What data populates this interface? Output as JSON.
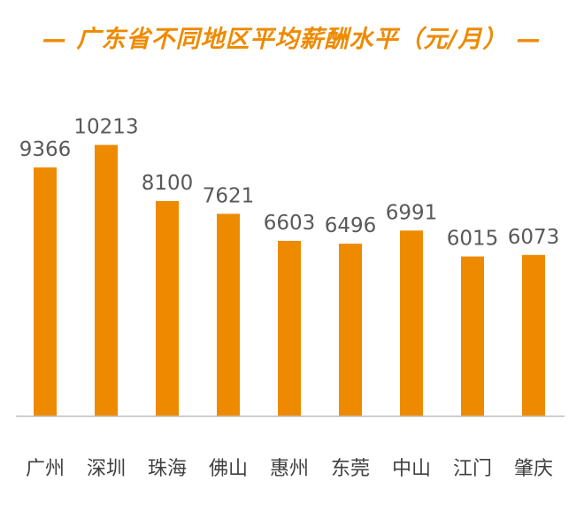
{
  "chart_data": {
    "type": "bar",
    "title": "— 广东省不同地区平均薪酬水平（元/月） —",
    "categories": [
      "广州",
      "深圳",
      "珠海",
      "佛山",
      "惠州",
      "东莞",
      "中山",
      "江门",
      "肇庆"
    ],
    "values": [
      9366,
      10213,
      8100,
      7621,
      6603,
      6496,
      6991,
      6015,
      6073
    ],
    "xlabel": "",
    "ylabel": "",
    "ylim": [
      0,
      11000
    ],
    "grid": false,
    "legend": "none",
    "bar_color": "#ee8a00",
    "axis_color": "#bfbfbf"
  }
}
